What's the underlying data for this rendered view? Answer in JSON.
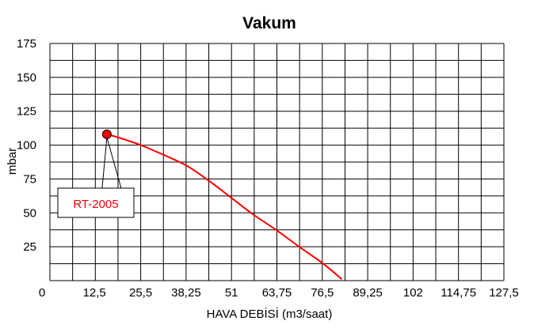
{
  "chart_data": {
    "type": "line",
    "title": "Vakum",
    "xlabel": "HAVA DEBİSİ (m3/saat)",
    "ylabel": "mbar",
    "xlim": [
      0,
      127.5
    ],
    "ylim": [
      0,
      175
    ],
    "x_ticks": [
      "0",
      "12,5",
      "25,5",
      "38,25",
      "51",
      "63,75",
      "76,5",
      "89,25",
      "102",
      "114,75",
      "127,5"
    ],
    "y_ticks": [
      "25",
      "50",
      "75",
      "100",
      "125",
      "150",
      "175"
    ],
    "grid": true,
    "series": [
      {
        "name": "RT-2005",
        "color": "#ff0000",
        "x": [
          16,
          20,
          25.5,
          30,
          38.25,
          45,
          51,
          57,
          63.75,
          70,
          76.5,
          82
        ],
        "y": [
          108,
          105,
          100,
          95,
          85,
          73,
          61,
          49,
          37,
          25,
          13,
          1
        ]
      }
    ],
    "annotations": [
      {
        "label": "RT-2005",
        "x": 16,
        "y": 108,
        "color": "#ff0000"
      }
    ]
  }
}
